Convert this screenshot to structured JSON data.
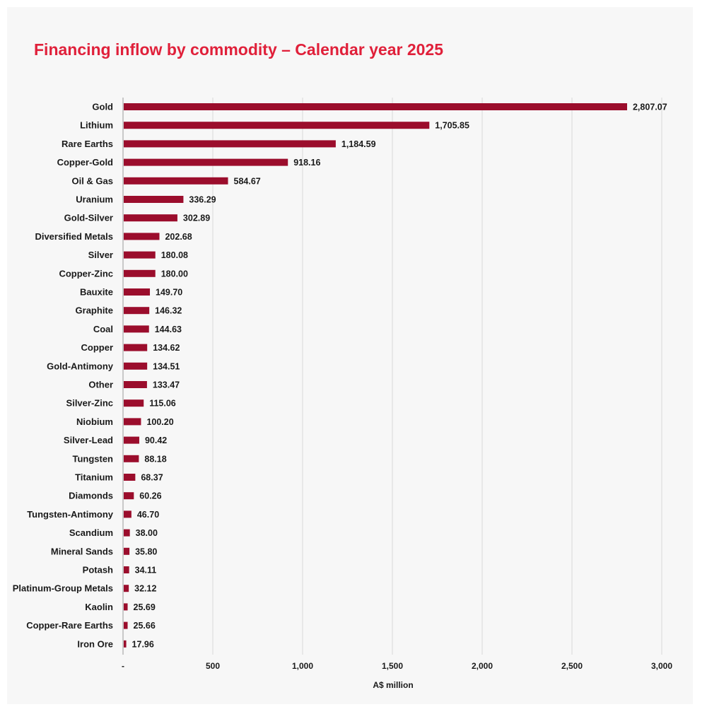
{
  "chart_data": {
    "type": "bar",
    "orientation": "horizontal",
    "title": "Financing inflow by commodity – Calendar year 2025",
    "xlabel": "A$ million",
    "ylabel": "",
    "xlim": [
      0,
      3000
    ],
    "xticks": [
      0,
      500,
      1000,
      1500,
      2000,
      2500,
      3000
    ],
    "xtick_labels": [
      "-",
      "500",
      "1,000",
      "1,500",
      "2,000",
      "2,500",
      "3,000"
    ],
    "grid": "vertical",
    "bar_color": "#9b0d2c",
    "categories": [
      "Gold",
      "Lithium",
      "Rare Earths",
      "Copper-Gold",
      "Oil & Gas",
      "Uranium",
      "Gold-Silver",
      "Diversified Metals",
      "Silver",
      "Copper-Zinc",
      "Bauxite",
      "Graphite",
      "Coal",
      "Copper",
      "Gold-Antimony",
      "Other",
      "Silver-Zinc",
      "Niobium",
      "Silver-Lead",
      "Tungsten",
      "Titanium",
      "Diamonds",
      "Tungsten-Antimony",
      "Scandium",
      "Mineral Sands",
      "Potash",
      "Platinum-Group Metals",
      "Kaolin",
      "Copper-Rare Earths",
      "Iron Ore"
    ],
    "values": [
      2807.07,
      1705.85,
      1184.59,
      918.16,
      584.67,
      336.29,
      302.89,
      202.68,
      180.08,
      180.0,
      149.7,
      146.32,
      144.63,
      134.62,
      134.51,
      133.47,
      115.06,
      100.2,
      90.42,
      88.18,
      68.37,
      60.26,
      46.7,
      38.0,
      35.8,
      34.11,
      32.12,
      25.69,
      25.66,
      17.96
    ],
    "value_labels": [
      "2,807.07",
      "1,705.85",
      "1,184.59",
      "918.16",
      "584.67",
      "336.29",
      "302.89",
      "202.68",
      "180.08",
      "180.00",
      "149.70",
      "146.32",
      "144.63",
      "134.62",
      "134.51",
      "133.47",
      "115.06",
      "100.20",
      "90.42",
      "88.18",
      "68.37",
      "60.26",
      "46.70",
      "38.00",
      "35.80",
      "34.11",
      "32.12",
      "25.69",
      "25.66",
      "17.96"
    ]
  }
}
